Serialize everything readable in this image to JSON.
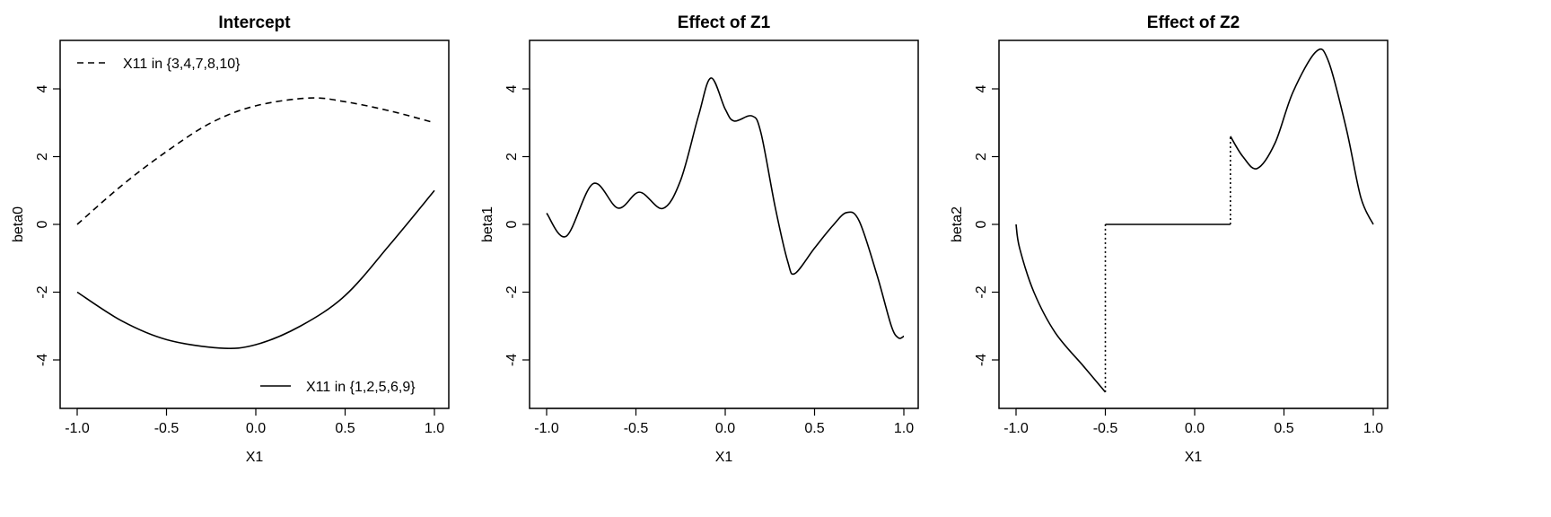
{
  "chart_data": [
    {
      "type": "line",
      "title": "Intercept",
      "xlabel": "X1",
      "ylabel": "beta0",
      "xlim": [
        -1,
        1
      ],
      "ylim": [
        -5.43,
        5.43
      ],
      "xticks": [
        "-1.0",
        "-0.5",
        "0.0",
        "0.5",
        "1.0"
      ],
      "yticks": [
        "-4",
        "-2",
        "0",
        "2",
        "4"
      ],
      "series": [
        {
          "name": "X11 in {3,4,7,8,10}",
          "style": "dashed",
          "x": [
            -1,
            -0.75,
            -0.5,
            -0.25,
            0,
            0.3,
            0.5,
            0.75,
            1
          ],
          "y": [
            0,
            1.15,
            2.15,
            3.0,
            3.5,
            3.73,
            3.62,
            3.35,
            3.0
          ]
        },
        {
          "name": "X11 in {1,2,5,6,9}",
          "style": "solid",
          "x": [
            -1,
            -0.75,
            -0.5,
            -0.2,
            0,
            0.25,
            0.5,
            0.75,
            1
          ],
          "y": [
            -2,
            -2.85,
            -3.4,
            -3.65,
            -3.55,
            -3.0,
            -2.1,
            -0.6,
            1.0
          ]
        }
      ],
      "legend": [
        {
          "label": "X11 in {3,4,7,8,10}",
          "style": "dashed",
          "placement": "top-left"
        },
        {
          "label": "X11 in {1,2,5,6,9}",
          "style": "solid",
          "placement": "bottom-right"
        }
      ]
    },
    {
      "type": "line",
      "title": "Effect of Z1",
      "xlabel": "X1",
      "ylabel": "beta1",
      "xlim": [
        -1,
        1
      ],
      "ylim": [
        -5.43,
        5.43
      ],
      "xticks": [
        "-1.0",
        "-0.5",
        "0.0",
        "0.5",
        "1.0"
      ],
      "yticks": [
        "-4",
        "-2",
        "0",
        "2",
        "4"
      ],
      "series": [
        {
          "name": "beta1",
          "style": "solid",
          "x": [
            -1,
            -0.89,
            -0.74,
            -0.6,
            -0.48,
            -0.35,
            -0.25,
            -0.15,
            -0.08,
            0.0,
            0.05,
            0.15,
            0.2,
            0.28,
            0.35,
            0.39,
            0.5,
            0.6,
            0.68,
            0.75,
            0.85,
            0.93,
            0.97,
            1.0
          ],
          "y": [
            0.33,
            -0.35,
            1.2,
            0.48,
            0.95,
            0.47,
            1.3,
            3.2,
            4.32,
            3.4,
            3.05,
            3.2,
            2.7,
            0.5,
            -1.1,
            -1.45,
            -0.7,
            -0.05,
            0.35,
            0.1,
            -1.5,
            -3.0,
            -3.35,
            -3.3
          ]
        }
      ]
    },
    {
      "type": "line",
      "title": "Effect of Z2",
      "xlabel": "X1",
      "ylabel": "beta2",
      "xlim": [
        -1,
        1
      ],
      "ylim": [
        -5.43,
        5.43
      ],
      "xticks": [
        "-1.0",
        "-0.5",
        "0.0",
        "0.5",
        "1.0"
      ],
      "yticks": [
        "-4",
        "-2",
        "0",
        "2",
        "4"
      ],
      "series": [
        {
          "name": "segment-1",
          "style": "solid",
          "x": [
            -1,
            -0.98,
            -0.9,
            -0.78,
            -0.62,
            -0.5
          ],
          "y": [
            0,
            -0.7,
            -2.0,
            -3.2,
            -4.2,
            -4.95
          ]
        },
        {
          "name": "jump-1",
          "style": "dotted",
          "x": [
            -0.5,
            -0.5
          ],
          "y": [
            -4.95,
            0
          ]
        },
        {
          "name": "segment-2",
          "style": "solid",
          "x": [
            -0.5,
            0.2
          ],
          "y": [
            0,
            0
          ]
        },
        {
          "name": "jump-2",
          "style": "dotted",
          "x": [
            0.2,
            0.2
          ],
          "y": [
            0,
            2.6
          ]
        },
        {
          "name": "segment-3",
          "style": "solid",
          "x": [
            0.2,
            0.27,
            0.35,
            0.45,
            0.55,
            0.68,
            0.75,
            0.85,
            0.93,
            1.0
          ],
          "y": [
            2.6,
            2.0,
            1.65,
            2.4,
            3.9,
            5.1,
            4.8,
            2.8,
            0.8,
            0
          ]
        }
      ]
    }
  ]
}
